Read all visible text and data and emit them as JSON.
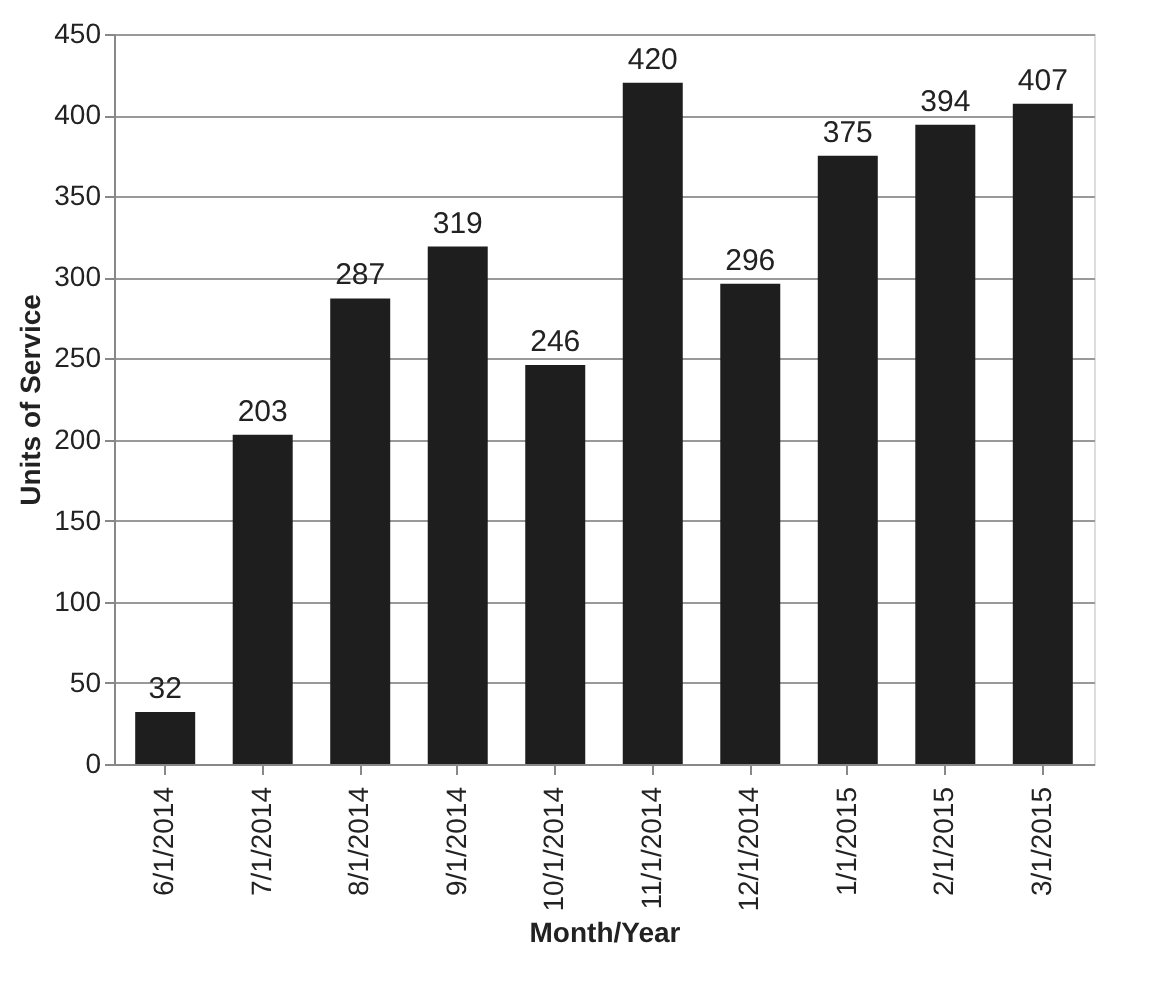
{
  "chart_data": {
    "type": "bar",
    "xlabel": "Month/Year",
    "ylabel": "Units of Service",
    "categories": [
      "6/1/2014",
      "7/1/2014",
      "8/1/2014",
      "9/1/2014",
      "10/1/2014",
      "11/1/2014",
      "12/1/2014",
      "1/1/2015",
      "2/1/2015",
      "3/1/2015"
    ],
    "values": [
      32,
      203,
      287,
      319,
      246,
      420,
      296,
      375,
      394,
      407
    ],
    "color": "#1e1e1e",
    "ylim": [
      0,
      450
    ],
    "yticks": [
      0,
      50,
      100,
      150,
      200,
      250,
      300,
      350,
      400,
      450
    ],
    "grid": "y",
    "data_labels": true
  }
}
